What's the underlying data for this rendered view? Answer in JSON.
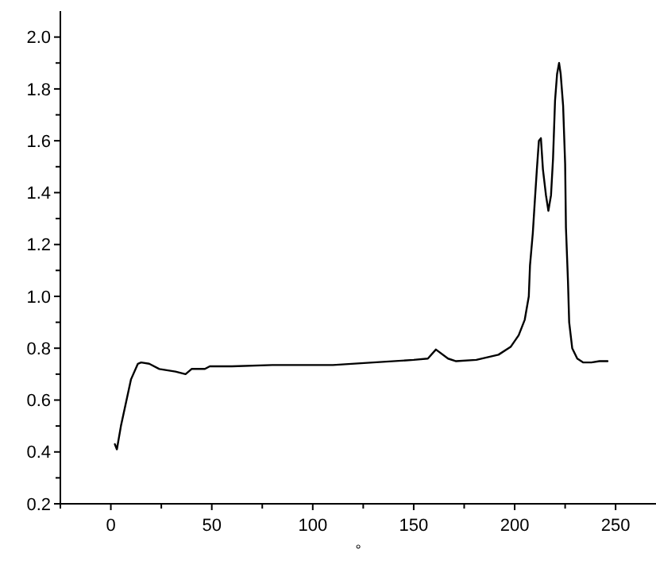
{
  "chart_data": {
    "type": "line",
    "xlabel": "°",
    "xlim": [
      -25,
      270
    ],
    "ylim": [
      0.2,
      2.1
    ],
    "xticks": [
      {
        "value": -25,
        "label": null
      },
      0,
      {
        "value": 25,
        "label": null
      },
      50,
      {
        "value": 75,
        "label": null
      },
      100,
      {
        "value": 125,
        "label": null
      },
      150,
      {
        "value": 175,
        "label": null
      },
      200,
      {
        "value": 225,
        "label": null
      },
      250
    ],
    "yticks": [
      {
        "value": 0.2,
        "label": "0.2"
      },
      {
        "value": 0.3,
        "label": null
      },
      {
        "value": 0.4,
        "label": "0.4"
      },
      {
        "value": 0.5,
        "label": null
      },
      {
        "value": 0.6,
        "label": "0.6"
      },
      {
        "value": 0.7,
        "label": null
      },
      {
        "value": 0.8,
        "label": "0.8"
      },
      {
        "value": 0.9,
        "label": null
      },
      {
        "value": 1.0,
        "label": "1.0"
      },
      {
        "value": 1.1,
        "label": null
      },
      {
        "value": 1.2,
        "label": "1.2"
      },
      {
        "value": 1.3,
        "label": null
      },
      {
        "value": 1.4,
        "label": "1.4"
      },
      {
        "value": 1.5,
        "label": null
      },
      {
        "value": 1.6,
        "label": "1.6"
      },
      {
        "value": 1.7,
        "label": null
      },
      {
        "value": 1.8,
        "label": "1.8"
      },
      {
        "value": 1.9,
        "label": null
      },
      {
        "value": 2.0,
        "label": "2.0"
      }
    ],
    "marker": "none",
    "line_style": "solid",
    "series": [
      {
        "color": "#000000",
        "x": [
          2,
          3,
          5,
          8.6,
          10,
          13.4,
          15,
          19,
          24,
          32,
          37,
          40,
          46.6,
          49,
          60,
          80,
          110,
          130,
          150,
          157,
          161,
          167,
          171,
          181,
          192,
          198,
          202,
          205,
          207,
          207.6,
          209,
          210,
          211,
          212,
          213,
          214,
          215.5,
          216.7,
          218,
          219,
          220,
          221,
          222,
          222.8,
          224,
          225,
          225.4,
          226.4,
          227,
          228.5,
          231,
          234,
          238,
          242,
          246
        ],
        "values": [
          0.43,
          0.41,
          0.5,
          0.63,
          0.68,
          0.74,
          0.745,
          0.74,
          0.72,
          0.71,
          0.7,
          0.72,
          0.72,
          0.73,
          0.73,
          0.735,
          0.735,
          0.745,
          0.755,
          0.76,
          0.795,
          0.76,
          0.75,
          0.755,
          0.775,
          0.805,
          0.85,
          0.91,
          1.0,
          1.12,
          1.245,
          1.37,
          1.49,
          1.6,
          1.61,
          1.49,
          1.39,
          1.33,
          1.39,
          1.53,
          1.755,
          1.857,
          1.9,
          1.857,
          1.735,
          1.51,
          1.265,
          1.06,
          0.9,
          0.8,
          0.76,
          0.745,
          0.745,
          0.75,
          0.75
        ]
      }
    ]
  }
}
